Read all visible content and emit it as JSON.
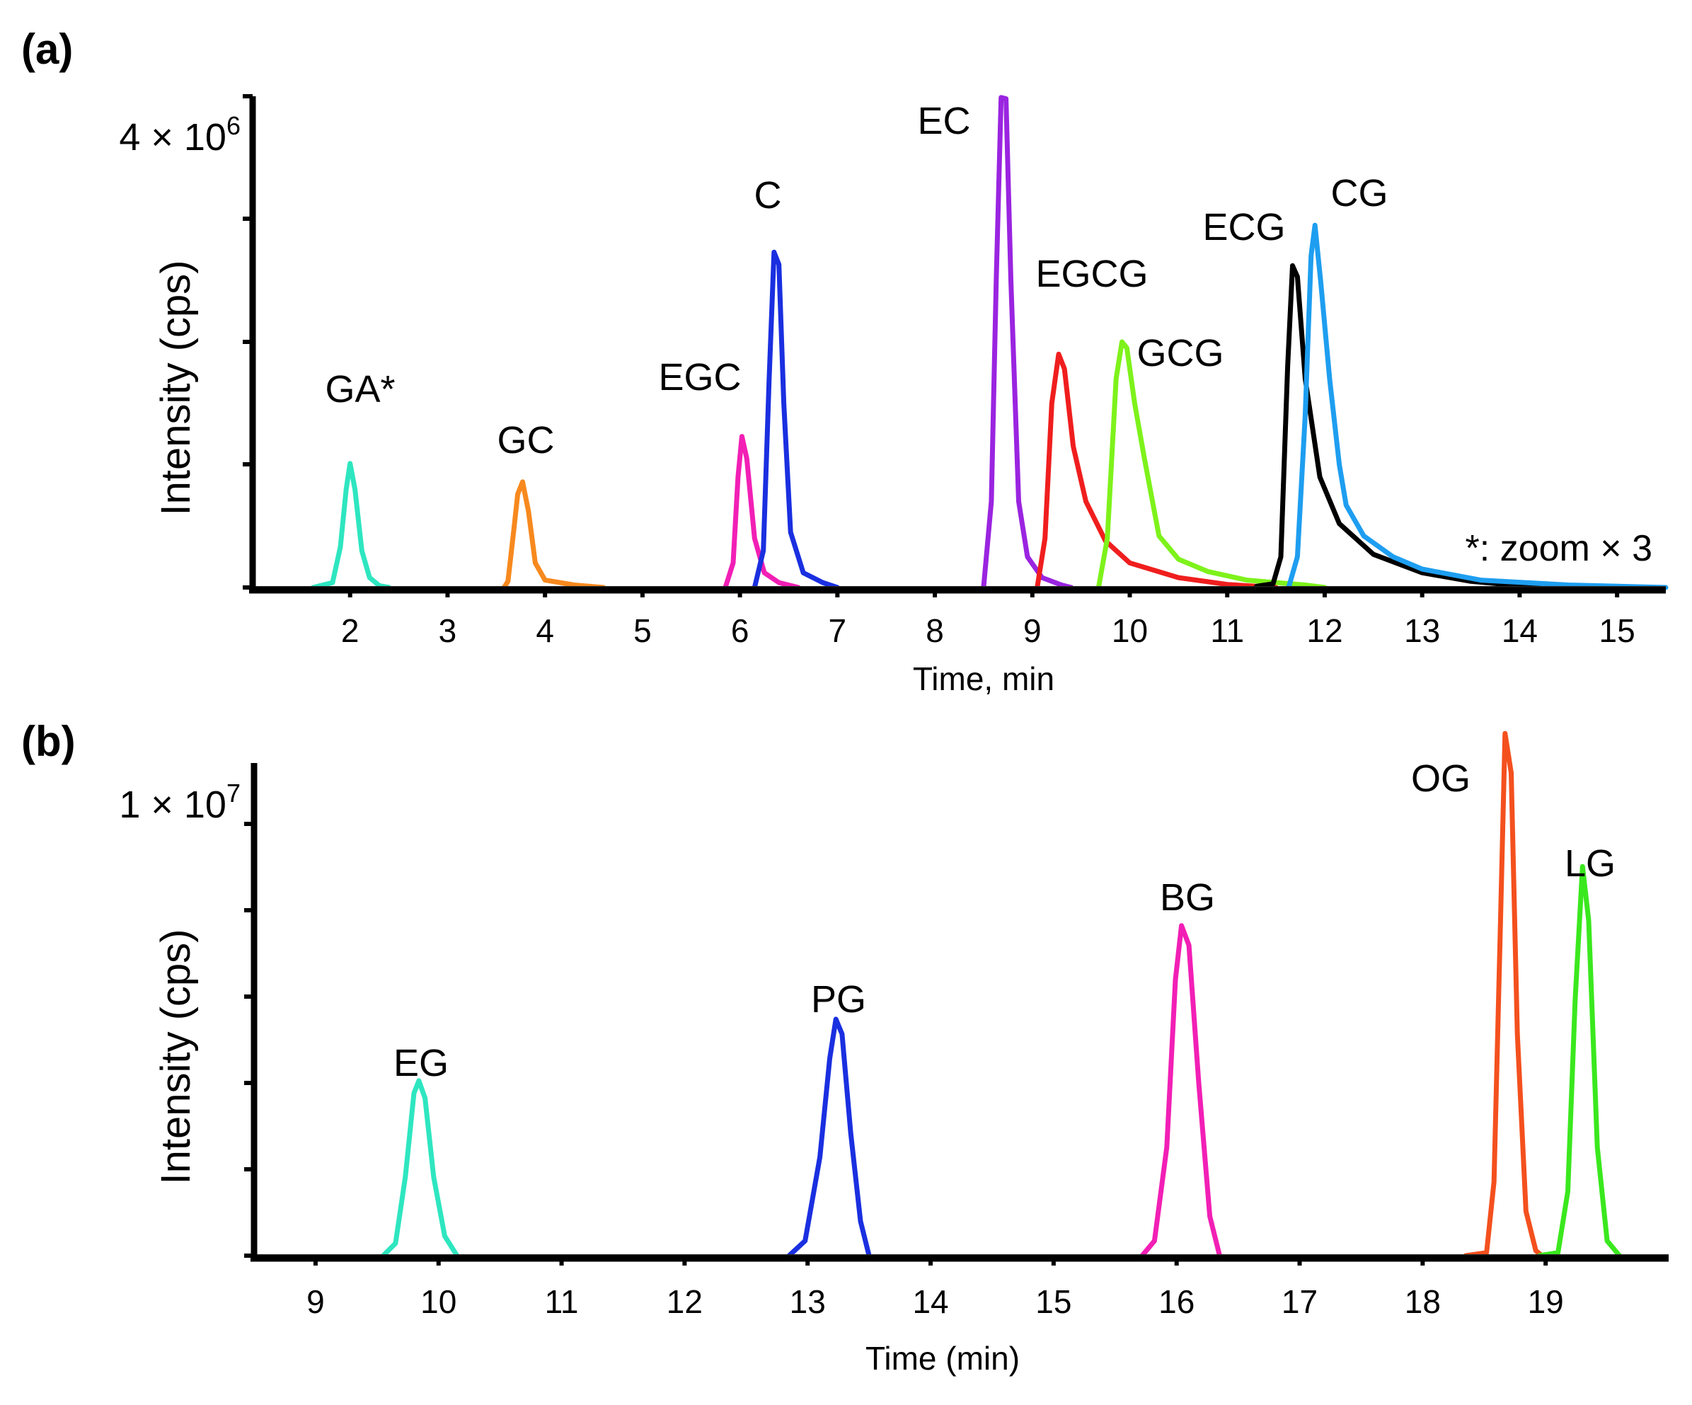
{
  "chart_data": [
    {
      "type": "line",
      "panel_label": "(a)",
      "y_top_label": "4 × 10",
      "y_top_exponent": "6",
      "xlabel": "Time, min",
      "ylabel": "Intensity (cps)",
      "xlim": [
        1.0,
        15.5
      ],
      "ylim": [
        0,
        4000000
      ],
      "xticks": [
        "2",
        "3",
        "4",
        "5",
        "6",
        "7",
        "8",
        "9",
        "10",
        "11",
        "12",
        "13",
        "14",
        "15"
      ],
      "annotation": "*: zoom × 3",
      "series": [
        {
          "name": "GA*",
          "color": "#2ee6c0",
          "points": [
            [
              1.62,
              0
            ],
            [
              1.82,
              40000
            ],
            [
              1.9,
              330000
            ],
            [
              1.96,
              800000
            ],
            [
              2.0,
              1010000
            ],
            [
              2.05,
              800000
            ],
            [
              2.12,
              300000
            ],
            [
              2.2,
              80000
            ],
            [
              2.3,
              15000
            ],
            [
              2.4,
              0
            ]
          ]
        },
        {
          "name": "GC",
          "color": "#f7891e",
          "points": [
            [
              3.58,
              0
            ],
            [
              3.62,
              50000
            ],
            [
              3.68,
              470000
            ],
            [
              3.72,
              760000
            ],
            [
              3.77,
              860000
            ],
            [
              3.83,
              620000
            ],
            [
              3.9,
              200000
            ],
            [
              4.0,
              60000
            ],
            [
              4.3,
              20000
            ],
            [
              4.6,
              0
            ]
          ]
        },
        {
          "name": "EGC",
          "color": "#f21fb5",
          "points": [
            [
              5.85,
              0
            ],
            [
              5.93,
              200000
            ],
            [
              5.98,
              900000
            ],
            [
              6.02,
              1230000
            ],
            [
              6.07,
              1050000
            ],
            [
              6.15,
              400000
            ],
            [
              6.25,
              120000
            ],
            [
              6.4,
              40000
            ],
            [
              6.6,
              0
            ]
          ]
        },
        {
          "name": "C",
          "color": "#1a2fe0",
          "points": [
            [
              6.15,
              0
            ],
            [
              6.24,
              300000
            ],
            [
              6.3,
              1700000
            ],
            [
              6.35,
              2730000
            ],
            [
              6.4,
              2630000
            ],
            [
              6.45,
              1500000
            ],
            [
              6.52,
              450000
            ],
            [
              6.65,
              120000
            ],
            [
              6.85,
              40000
            ],
            [
              7.0,
              0
            ]
          ]
        },
        {
          "name": "EC",
          "color": "#9a24e0",
          "points": [
            [
              8.5,
              0
            ],
            [
              8.58,
              700000
            ],
            [
              8.63,
              2500000
            ],
            [
              8.68,
              3990000
            ],
            [
              8.73,
              3980000
            ],
            [
              8.78,
              2500000
            ],
            [
              8.86,
              700000
            ],
            [
              8.95,
              250000
            ],
            [
              9.1,
              80000
            ],
            [
              9.3,
              20000
            ],
            [
              9.4,
              0
            ]
          ]
        },
        {
          "name": "EGCG",
          "color": "#f01e1e",
          "points": [
            [
              9.05,
              0
            ],
            [
              9.13,
              400000
            ],
            [
              9.2,
              1500000
            ],
            [
              9.27,
              1900000
            ],
            [
              9.33,
              1780000
            ],
            [
              9.42,
              1150000
            ],
            [
              9.55,
              700000
            ],
            [
              9.75,
              380000
            ],
            [
              10.0,
              200000
            ],
            [
              10.5,
              80000
            ],
            [
              11.0,
              25000
            ],
            [
              11.5,
              0
            ]
          ]
        },
        {
          "name": "GCG",
          "color": "#7ef21b",
          "points": [
            [
              9.68,
              0
            ],
            [
              9.77,
              400000
            ],
            [
              9.86,
              1700000
            ],
            [
              9.92,
              2000000
            ],
            [
              9.97,
              1950000
            ],
            [
              10.05,
              1500000
            ],
            [
              10.15,
              1050000
            ],
            [
              10.3,
              420000
            ],
            [
              10.5,
              230000
            ],
            [
              10.8,
              130000
            ],
            [
              11.2,
              60000
            ],
            [
              11.8,
              20000
            ],
            [
              12.0,
              0
            ]
          ]
        },
        {
          "name": "ECG",
          "color": "#000000",
          "points": [
            [
              11.3,
              10000
            ],
            [
              11.47,
              30000
            ],
            [
              11.55,
              250000
            ],
            [
              11.62,
              1800000
            ],
            [
              11.67,
              2620000
            ],
            [
              11.72,
              2530000
            ],
            [
              11.8,
              1700000
            ],
            [
              11.95,
              900000
            ],
            [
              12.15,
              520000
            ],
            [
              12.5,
              270000
            ],
            [
              13.0,
              120000
            ],
            [
              13.5,
              50000
            ],
            [
              14.0,
              15000
            ],
            [
              14.5,
              0
            ]
          ]
        },
        {
          "name": "CG",
          "color": "#1e9ef0",
          "points": [
            [
              11.63,
              0
            ],
            [
              11.72,
              250000
            ],
            [
              11.8,
              1400000
            ],
            [
              11.86,
              2700000
            ],
            [
              11.9,
              2950000
            ],
            [
              11.96,
              2480000
            ],
            [
              12.05,
              1700000
            ],
            [
              12.15,
              1000000
            ],
            [
              12.22,
              670000
            ],
            [
              12.4,
              420000
            ],
            [
              12.7,
              250000
            ],
            [
              13.0,
              150000
            ],
            [
              13.6,
              60000
            ],
            [
              14.5,
              20000
            ],
            [
              15.5,
              0
            ]
          ]
        }
      ]
    },
    {
      "type": "line",
      "panel_label": "(b)",
      "y_top_label": "1 × 10",
      "y_top_exponent": "7",
      "xlabel": "Time (min)",
      "ylabel": "Intensity (cps)",
      "xlim": [
        8.5,
        20.0
      ],
      "ylim": [
        0,
        10000000
      ],
      "xticks": [
        "9",
        "10",
        "11",
        "12",
        "13",
        "14",
        "15",
        "16",
        "17",
        "18",
        "19"
      ],
      "series": [
        {
          "name": "EG",
          "color": "#2ee6c0",
          "points": [
            [
              9.55,
              0
            ],
            [
              9.65,
              250000
            ],
            [
              9.73,
              1600000
            ],
            [
              9.8,
              3300000
            ],
            [
              9.84,
              3550000
            ],
            [
              9.89,
              3200000
            ],
            [
              9.96,
              1600000
            ],
            [
              10.05,
              400000
            ],
            [
              10.15,
              0
            ]
          ]
        },
        {
          "name": "PG",
          "color": "#1a2fe0",
          "points": [
            [
              12.85,
              0
            ],
            [
              12.98,
              300000
            ],
            [
              13.1,
              2000000
            ],
            [
              13.18,
              4000000
            ],
            [
              13.23,
              4800000
            ],
            [
              13.28,
              4500000
            ],
            [
              13.35,
              2500000
            ],
            [
              13.43,
              700000
            ],
            [
              13.5,
              0
            ]
          ]
        },
        {
          "name": "BG",
          "color": "#f21fb5",
          "points": [
            [
              15.72,
              0
            ],
            [
              15.82,
              300000
            ],
            [
              15.92,
              2200000
            ],
            [
              15.99,
              5600000
            ],
            [
              16.04,
              6700000
            ],
            [
              16.1,
              6300000
            ],
            [
              16.18,
              3500000
            ],
            [
              16.27,
              800000
            ],
            [
              16.35,
              0
            ]
          ]
        },
        {
          "name": "OG",
          "color": "#f4501e",
          "points": [
            [
              18.35,
              0
            ],
            [
              18.52,
              60000
            ],
            [
              18.58,
              1500000
            ],
            [
              18.63,
              6500000
            ],
            [
              18.67,
              10600000
            ],
            [
              18.72,
              9800000
            ],
            [
              18.77,
              4500000
            ],
            [
              18.84,
              900000
            ],
            [
              18.92,
              100000
            ],
            [
              18.97,
              0
            ]
          ]
        },
        {
          "name": "LG",
          "color": "#3ae81e",
          "points": [
            [
              18.95,
              0
            ],
            [
              19.1,
              60000
            ],
            [
              19.18,
              1300000
            ],
            [
              19.24,
              5200000
            ],
            [
              19.3,
              7900000
            ],
            [
              19.35,
              6800000
            ],
            [
              19.42,
              2200000
            ],
            [
              19.5,
              300000
            ],
            [
              19.6,
              0
            ]
          ]
        }
      ]
    }
  ]
}
